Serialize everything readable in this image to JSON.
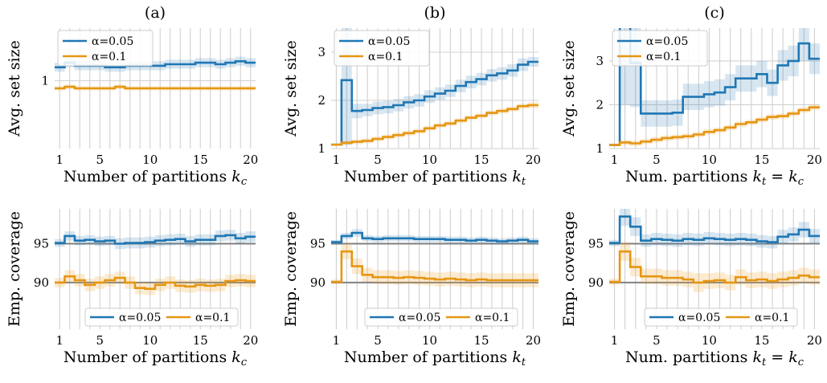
{
  "panel_titles": [
    "(a)",
    "(b)",
    "(c)"
  ],
  "colors": {
    "blue": "#1f77b4",
    "orange": "#e69612",
    "band_blue": "#1f77b4",
    "band_orange": "#f2a32a",
    "target_line": "#808080",
    "grid": "#d0d0d0"
  },
  "chart_data": [
    {
      "type": "line",
      "title": "(a)",
      "xlabel": "Number of partitions ",
      "xlabel_sym": "k",
      "xlabel_sub": "c",
      "ylabel": "Avg. set size",
      "xlim": [
        0.5,
        20.5
      ],
      "ylim": [
        0.55,
        1.35
      ],
      "xticks": [
        1,
        5,
        10,
        15,
        20
      ],
      "yticks": [
        1
      ],
      "grid": true,
      "legend": "upper-left",
      "x": [
        1,
        2,
        3,
        4,
        5,
        6,
        7,
        8,
        9,
        10,
        11,
        12,
        13,
        14,
        15,
        16,
        17,
        18,
        19,
        20
      ],
      "series": [
        {
          "name": "α=0.05",
          "color": "blue",
          "values": [
            1.09,
            1.12,
            1.1,
            1.1,
            1.1,
            1.09,
            1.09,
            1.1,
            1.1,
            1.1,
            1.1,
            1.11,
            1.11,
            1.11,
            1.12,
            1.12,
            1.11,
            1.12,
            1.13,
            1.12
          ],
          "band": [
            0.03,
            0.03,
            0.03,
            0.03,
            0.03,
            0.03,
            0.03,
            0.03,
            0.03,
            0.03,
            0.03,
            0.03,
            0.03,
            0.03,
            0.03,
            0.03,
            0.03,
            0.03,
            0.03,
            0.03
          ]
        },
        {
          "name": "α=0.1",
          "color": "orange",
          "values": [
            0.95,
            0.96,
            0.95,
            0.95,
            0.95,
            0.95,
            0.96,
            0.95,
            0.95,
            0.95,
            0.95,
            0.95,
            0.95,
            0.95,
            0.95,
            0.95,
            0.95,
            0.95,
            0.95,
            0.95
          ],
          "band": [
            0.015,
            0.015,
            0.015,
            0.015,
            0.015,
            0.015,
            0.015,
            0.015,
            0.015,
            0.015,
            0.015,
            0.015,
            0.015,
            0.015,
            0.015,
            0.015,
            0.015,
            0.015,
            0.015,
            0.015
          ]
        }
      ]
    },
    {
      "type": "line",
      "title": "(b)",
      "xlabel": "Number of partitions ",
      "xlabel_sym": "k",
      "xlabel_sub": "t",
      "ylabel": "Avg. set size",
      "xlim": [
        0.5,
        20.5
      ],
      "ylim": [
        1.0,
        3.5
      ],
      "xticks": [
        1,
        5,
        10,
        15,
        20
      ],
      "yticks": [
        1,
        2,
        3
      ],
      "grid": true,
      "legend": "upper-left",
      "x": [
        1,
        2,
        3,
        4,
        5,
        6,
        7,
        8,
        9,
        10,
        11,
        12,
        13,
        14,
        15,
        16,
        17,
        18,
        19,
        20
      ],
      "series": [
        {
          "name": "α=0.05",
          "color": "blue",
          "values": [
            1.08,
            2.42,
            1.78,
            1.8,
            1.84,
            1.86,
            1.9,
            1.96,
            2.0,
            2.08,
            2.14,
            2.2,
            2.3,
            2.38,
            2.44,
            2.52,
            2.56,
            2.62,
            2.74,
            2.8
          ],
          "band": [
            0.0,
            1.35,
            0.15,
            0.13,
            0.13,
            0.13,
            0.13,
            0.13,
            0.13,
            0.13,
            0.13,
            0.13,
            0.13,
            0.13,
            0.13,
            0.13,
            0.13,
            0.13,
            0.13,
            0.1
          ]
        },
        {
          "name": "α=0.1",
          "color": "orange",
          "values": [
            1.08,
            1.12,
            1.14,
            1.16,
            1.2,
            1.24,
            1.28,
            1.32,
            1.36,
            1.42,
            1.48,
            1.52,
            1.58,
            1.64,
            1.68,
            1.74,
            1.78,
            1.82,
            1.88,
            1.9
          ],
          "band": [
            0.0,
            0.04,
            0.05,
            0.05,
            0.05,
            0.05,
            0.05,
            0.05,
            0.05,
            0.05,
            0.05,
            0.05,
            0.05,
            0.05,
            0.05,
            0.05,
            0.05,
            0.05,
            0.05,
            0.06
          ]
        }
      ]
    },
    {
      "type": "line",
      "title": "(c)",
      "xlabel": "Num. partitions ",
      "xlabel_sym": "k",
      "xlabel_sub": "t",
      "xlabel_suffix_sym": "k",
      "xlabel_suffix_sub": "c",
      "ylabel": "Avg. set size",
      "xlim": [
        0.5,
        20.5
      ],
      "ylim": [
        1.0,
        3.75
      ],
      "xticks": [
        1,
        5,
        10,
        15,
        20
      ],
      "yticks": [
        1,
        2,
        3
      ],
      "grid": true,
      "legend": "upper-left",
      "x": [
        1,
        2,
        3,
        4,
        5,
        6,
        7,
        8,
        9,
        10,
        11,
        12,
        13,
        14,
        15,
        16,
        17,
        18,
        19,
        20
      ],
      "series": [
        {
          "name": "α=0.05",
          "color": "blue",
          "values": [
            1.08,
            3.8,
            2.95,
            1.8,
            1.8,
            1.8,
            1.82,
            2.18,
            2.18,
            2.24,
            2.28,
            2.4,
            2.6,
            2.6,
            2.7,
            2.5,
            2.9,
            3.0,
            3.4,
            3.05
          ],
          "band": [
            0.0,
            1.8,
            1.0,
            0.3,
            0.3,
            0.3,
            0.3,
            0.3,
            0.3,
            0.3,
            0.3,
            0.3,
            0.3,
            0.3,
            0.3,
            0.3,
            0.35,
            0.35,
            0.4,
            0.35
          ]
        },
        {
          "name": "α=0.1",
          "color": "orange",
          "values": [
            1.08,
            1.14,
            1.12,
            1.16,
            1.2,
            1.24,
            1.26,
            1.28,
            1.32,
            1.38,
            1.42,
            1.48,
            1.56,
            1.6,
            1.66,
            1.72,
            1.74,
            1.8,
            1.88,
            1.94
          ],
          "band": [
            0.0,
            0.06,
            0.06,
            0.06,
            0.06,
            0.06,
            0.06,
            0.06,
            0.06,
            0.06,
            0.06,
            0.06,
            0.06,
            0.06,
            0.06,
            0.06,
            0.06,
            0.06,
            0.06,
            0.06
          ]
        }
      ]
    },
    {
      "type": "line",
      "title": "",
      "xlabel": "Number of partitions ",
      "xlabel_sym": "k",
      "xlabel_sub": "c",
      "ylabel": "Emp. coverage",
      "xlim": [
        0.5,
        20.5
      ],
      "ylim": [
        84,
        99.5
      ],
      "xticks": [
        1,
        5,
        10,
        15,
        20
      ],
      "yticks": [
        90,
        95
      ],
      "grid": true,
      "legend": "lower-center",
      "x": [
        1,
        2,
        3,
        4,
        5,
        6,
        7,
        8,
        9,
        10,
        11,
        12,
        13,
        14,
        15,
        16,
        17,
        18,
        19,
        20
      ],
      "target_lines": [
        95,
        90
      ],
      "series": [
        {
          "name": "α=0.05",
          "color": "blue",
          "values": [
            95.1,
            96.0,
            95.4,
            95.5,
            95.3,
            95.4,
            95.0,
            95.1,
            95.1,
            95.2,
            95.4,
            95.5,
            95.6,
            95.3,
            95.5,
            95.5,
            96.0,
            96.1,
            95.7,
            95.9
          ],
          "band": [
            0.5,
            0.6,
            0.6,
            0.6,
            0.6,
            0.6,
            0.7,
            0.7,
            0.7,
            0.7,
            0.7,
            0.7,
            0.7,
            0.7,
            0.7,
            0.7,
            0.7,
            0.7,
            0.7,
            0.7
          ]
        },
        {
          "name": "α=0.1",
          "color": "orange",
          "values": [
            90.0,
            90.8,
            90.3,
            89.7,
            90.0,
            90.3,
            90.6,
            90.0,
            89.3,
            89.2,
            89.7,
            90.0,
            89.6,
            89.5,
            89.7,
            89.6,
            89.7,
            90.2,
            90.3,
            90.2
          ],
          "band": [
            0.6,
            0.8,
            0.8,
            0.8,
            0.8,
            0.8,
            0.8,
            0.8,
            0.8,
            0.8,
            0.8,
            0.8,
            0.8,
            0.8,
            0.8,
            0.8,
            0.8,
            0.8,
            0.8,
            0.8
          ]
        }
      ]
    },
    {
      "type": "line",
      "title": "",
      "xlabel": "Number of partitions ",
      "xlabel_sym": "k",
      "xlabel_sub": "t",
      "ylabel": "Emp. coverage",
      "xlim": [
        0.5,
        20.5
      ],
      "ylim": [
        84,
        99.5
      ],
      "xticks": [
        1,
        5,
        10,
        15,
        20
      ],
      "yticks": [
        90,
        95
      ],
      "grid": true,
      "legend": "lower-center",
      "x": [
        1,
        2,
        3,
        4,
        5,
        6,
        7,
        8,
        9,
        10,
        11,
        12,
        13,
        14,
        15,
        16,
        17,
        18,
        19,
        20
      ],
      "target_lines": [
        95,
        90
      ],
      "series": [
        {
          "name": "α=0.05",
          "color": "blue",
          "values": [
            95.2,
            96.0,
            96.4,
            95.7,
            95.6,
            95.7,
            95.7,
            95.7,
            95.6,
            95.6,
            95.6,
            95.5,
            95.5,
            95.4,
            95.5,
            95.4,
            95.3,
            95.4,
            95.5,
            95.3
          ],
          "band": [
            0.3,
            0.4,
            0.5,
            0.4,
            0.4,
            0.4,
            0.4,
            0.4,
            0.4,
            0.4,
            0.4,
            0.4,
            0.4,
            0.4,
            0.4,
            0.4,
            0.4,
            0.4,
            0.4,
            0.4
          ]
        },
        {
          "name": "α=0.1",
          "color": "orange",
          "values": [
            90.1,
            94.0,
            92.1,
            91.0,
            90.7,
            90.7,
            90.6,
            90.7,
            90.6,
            90.5,
            90.4,
            90.5,
            90.4,
            90.3,
            90.4,
            90.3,
            90.3,
            90.3,
            90.3,
            90.3
          ],
          "band": [
            0.3,
            1.0,
            1.0,
            0.9,
            0.9,
            0.9,
            0.9,
            0.9,
            0.9,
            0.9,
            0.9,
            0.9,
            0.9,
            0.9,
            0.9,
            0.9,
            0.9,
            0.9,
            0.9,
            0.9
          ]
        }
      ]
    },
    {
      "type": "line",
      "title": "",
      "xlabel": "Num. partitions ",
      "xlabel_sym": "k",
      "xlabel_sub": "t",
      "xlabel_suffix_sym": "k",
      "xlabel_suffix_sub": "c",
      "ylabel": "Emp. coverage",
      "xlim": [
        0.5,
        20.5
      ],
      "ylim": [
        84,
        99.5
      ],
      "xticks": [
        1,
        5,
        10,
        15,
        20
      ],
      "yticks": [
        90,
        95
      ],
      "grid": true,
      "legend": "lower-center",
      "x": [
        1,
        2,
        3,
        4,
        5,
        6,
        7,
        8,
        9,
        10,
        11,
        12,
        13,
        14,
        15,
        16,
        17,
        18,
        19,
        20
      ],
      "target_lines": [
        95,
        90
      ],
      "series": [
        {
          "name": "α=0.05",
          "color": "blue",
          "values": [
            95.1,
            98.5,
            97.2,
            95.4,
            95.6,
            95.5,
            95.4,
            95.6,
            95.5,
            95.7,
            95.6,
            95.5,
            95.6,
            95.5,
            95.3,
            95.2,
            95.9,
            96.2,
            96.8,
            96.0
          ],
          "band": [
            0.4,
            1.2,
            1.2,
            0.8,
            0.8,
            0.8,
            0.8,
            0.8,
            0.8,
            0.8,
            0.8,
            0.8,
            0.8,
            0.8,
            0.8,
            0.8,
            0.9,
            0.9,
            1.0,
            0.9
          ]
        },
        {
          "name": "α=0.1",
          "color": "orange",
          "values": [
            90.1,
            94.0,
            92.0,
            90.8,
            90.8,
            90.6,
            90.6,
            90.4,
            90.0,
            90.2,
            90.3,
            90.0,
            90.7,
            90.3,
            90.4,
            90.2,
            90.4,
            90.6,
            90.9,
            90.7
          ],
          "band": [
            0.4,
            1.2,
            1.2,
            1.0,
            1.0,
            1.0,
            1.0,
            1.0,
            1.2,
            1.0,
            1.0,
            1.0,
            1.0,
            1.0,
            1.0,
            1.0,
            1.0,
            1.0,
            1.0,
            1.0
          ]
        }
      ]
    }
  ]
}
